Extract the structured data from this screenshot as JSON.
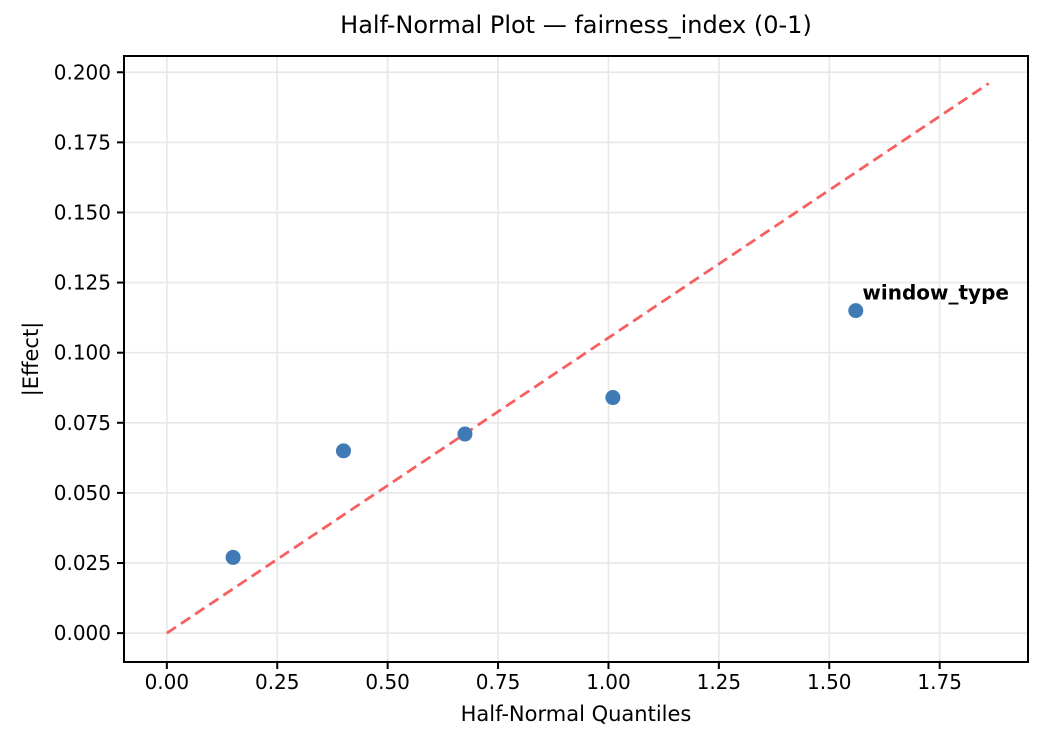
{
  "chart_data": {
    "type": "scatter",
    "title": "Half-Normal Plot — fairness_index (0-1)",
    "xlabel": "Half-Normal Quantiles",
    "ylabel": "|Effect|",
    "xlim": [
      -0.097,
      1.95
    ],
    "ylim": [
      -0.0103,
      0.2058
    ],
    "grid": true,
    "legend": "none",
    "xticks": {
      "values": [
        0,
        0.25,
        0.5,
        0.75,
        1.0,
        1.25,
        1.5,
        1.75
      ],
      "labels": [
        "0.00",
        "0.25",
        "0.50",
        "0.75",
        "1.00",
        "1.25",
        "1.50",
        "1.75"
      ]
    },
    "yticks": {
      "values": [
        0,
        0.025,
        0.05,
        0.075,
        0.1,
        0.125,
        0.15,
        0.175,
        0.2
      ],
      "labels": [
        "0.000",
        "0.025",
        "0.050",
        "0.075",
        "0.100",
        "0.125",
        "0.150",
        "0.175",
        "0.200"
      ]
    },
    "points": [
      {
        "x": 0.15,
        "y": 0.027
      },
      {
        "x": 0.4,
        "y": 0.065
      },
      {
        "x": 0.675,
        "y": 0.071
      },
      {
        "x": 1.01,
        "y": 0.084
      },
      {
        "x": 1.56,
        "y": 0.115
      }
    ],
    "reference_line": {
      "x1": 0,
      "y1": 0,
      "x2": 1.861,
      "y2": 0.196,
      "style": "dashed"
    },
    "annotation": {
      "text": "window_type",
      "x": 1.575,
      "y": 0.119
    },
    "colors": {
      "point": "#3f7ab4",
      "reference_line": "#f66060",
      "annotation": "#ff0000",
      "grid": "#e8e8e8",
      "frame": "#000000",
      "text": "#000000",
      "background": "#ffffff"
    }
  }
}
